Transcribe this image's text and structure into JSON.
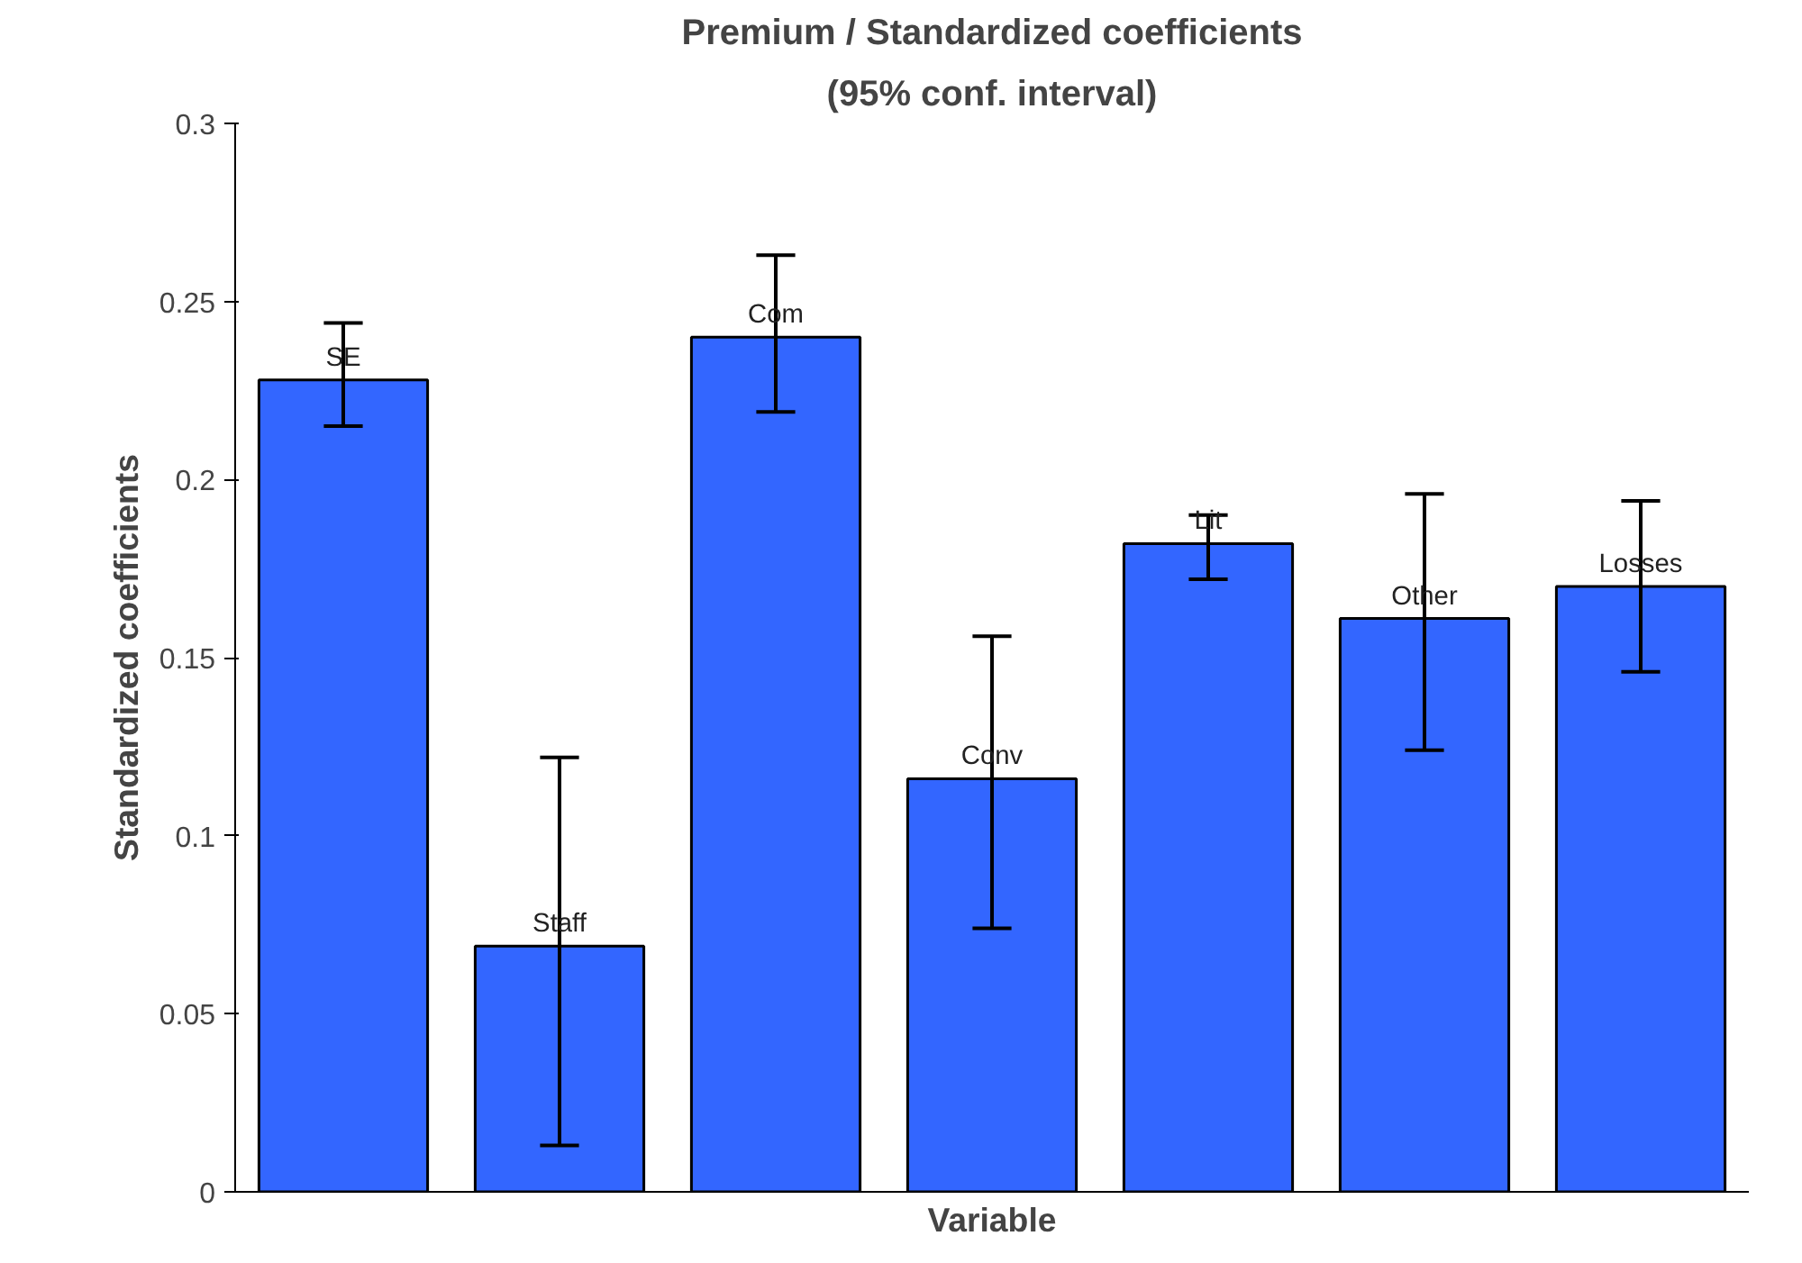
{
  "chart_data": {
    "type": "bar",
    "title": "Premium / Standardized coefficients",
    "subtitle": "(95% conf. interval)",
    "xlabel": "Variable",
    "ylabel": "Standardized coefficients",
    "categories": [
      "SE",
      "Staff",
      "Com",
      "Conv",
      "Lit",
      "Other",
      "Losses"
    ],
    "values": [
      0.228,
      0.069,
      0.24,
      0.116,
      0.182,
      0.161,
      0.17
    ],
    "errors": [
      [
        0.215,
        0.244
      ],
      [
        0.013,
        0.122
      ],
      [
        0.219,
        0.263
      ],
      [
        0.074,
        0.156
      ],
      [
        0.172,
        0.19
      ],
      [
        0.124,
        0.196
      ],
      [
        0.146,
        0.194
      ]
    ],
    "color": "#3366ff",
    "ylim": [
      0,
      0.3
    ],
    "yticks": [
      0,
      0.05,
      0.1,
      0.15,
      0.2,
      0.25,
      0.3
    ],
    "grid": false
  }
}
